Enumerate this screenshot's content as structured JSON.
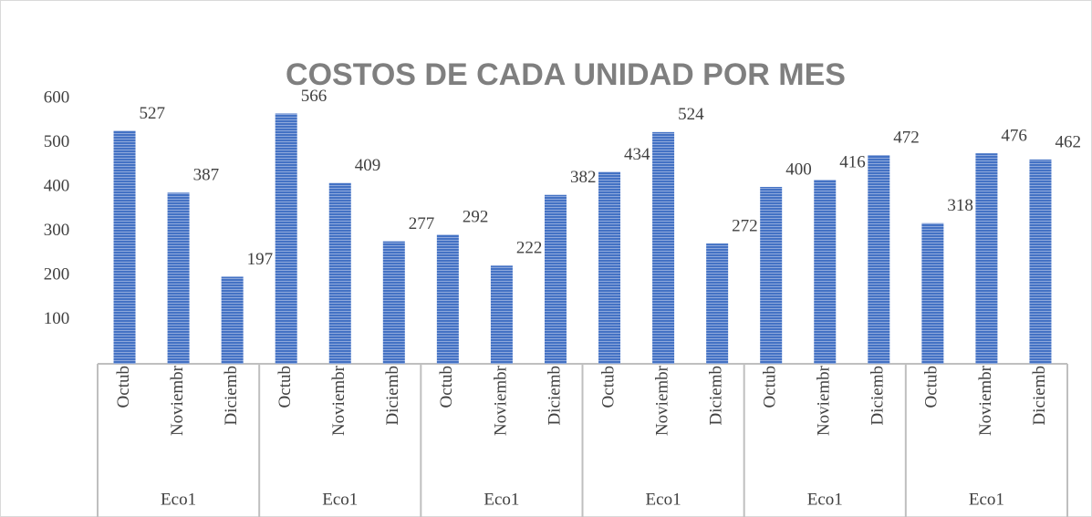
{
  "chart_data": {
    "type": "bar",
    "title": "COSTOS DE CADA UNIDAD POR MES",
    "categories": [
      "Octub",
      "Noviembr",
      "Diciemb",
      "Octub",
      "Noviembr",
      "Diciemb",
      "Octub",
      "Noviembr",
      "Diciemb",
      "Octub",
      "Noviembr",
      "Diciemb",
      "Octub",
      "Noviembr",
      "Diciemb",
      "Octub",
      "Noviembr",
      "Diciemb"
    ],
    "groups": [
      "Eco1",
      "Eco1",
      "Eco1",
      "Eco1",
      "Eco1",
      "Eco1"
    ],
    "values": [
      527,
      387,
      197,
      566,
      409,
      277,
      292,
      222,
      382,
      434,
      524,
      272,
      400,
      416,
      472,
      318,
      476,
      462
    ],
    "color": "#4472c4",
    "ylim": [
      0,
      600
    ],
    "yticks": [
      100,
      200,
      300,
      400,
      500,
      600
    ]
  }
}
